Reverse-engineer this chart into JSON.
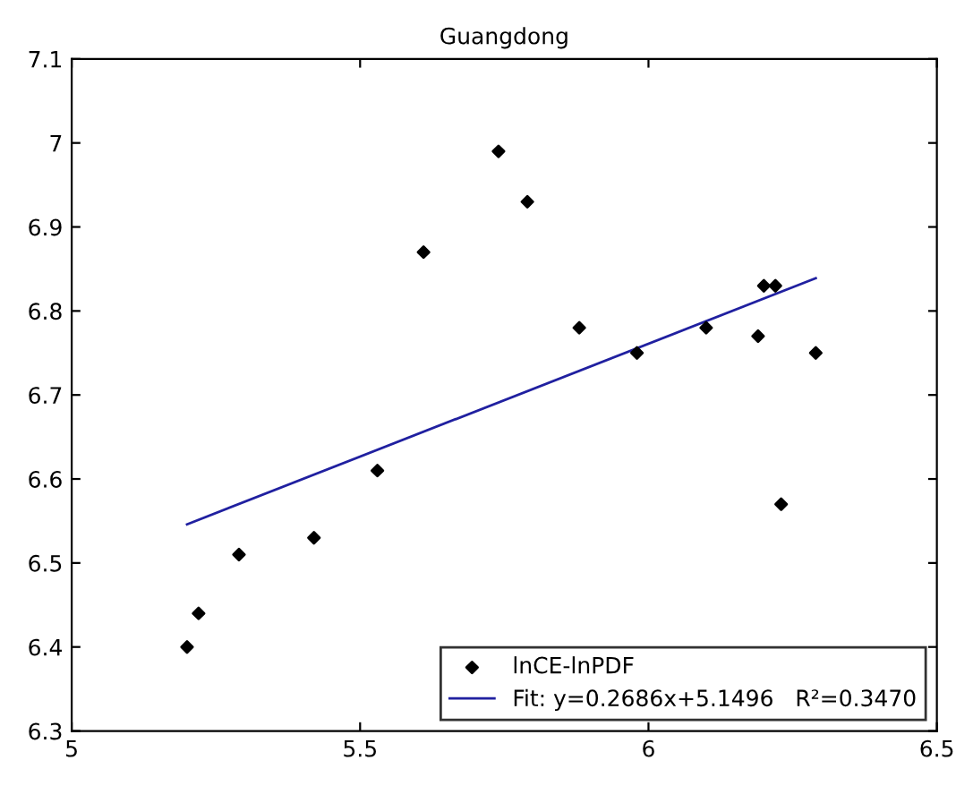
{
  "chart_data": {
    "type": "scatter",
    "title": "Guangdong",
    "xlim": [
      5,
      6.5
    ],
    "ylim": [
      6.3,
      7.1
    ],
    "xticks": [
      5,
      5.5,
      6,
      6.5
    ],
    "yticks": [
      6.3,
      6.4,
      6.5,
      6.6,
      6.7,
      6.8,
      6.9,
      7,
      7.1
    ],
    "grid": false,
    "legend": "bottom right",
    "series": [
      {
        "name": "lnCE-lnPDF",
        "color": "#000000",
        "marker": "diamond",
        "x": [
          5.2,
          5.22,
          5.29,
          5.42,
          5.53,
          5.61,
          5.74,
          5.79,
          5.88,
          5.98,
          6.1,
          6.19,
          6.2,
          6.22,
          6.23,
          6.29
        ],
        "values": [
          6.4,
          6.44,
          6.51,
          6.53,
          6.61,
          6.87,
          6.99,
          6.93,
          6.78,
          6.75,
          6.78,
          6.77,
          6.83,
          6.83,
          6.57,
          6.75
        ]
      },
      {
        "name": "Fit: y=0.2686x+5.1496   R²=0.3470",
        "type": "line",
        "color": "#2020a0",
        "marker": "none",
        "line_style": "solid",
        "x": [
          5.2,
          6.29
        ],
        "values": [
          6.546,
          6.839
        ]
      }
    ]
  }
}
